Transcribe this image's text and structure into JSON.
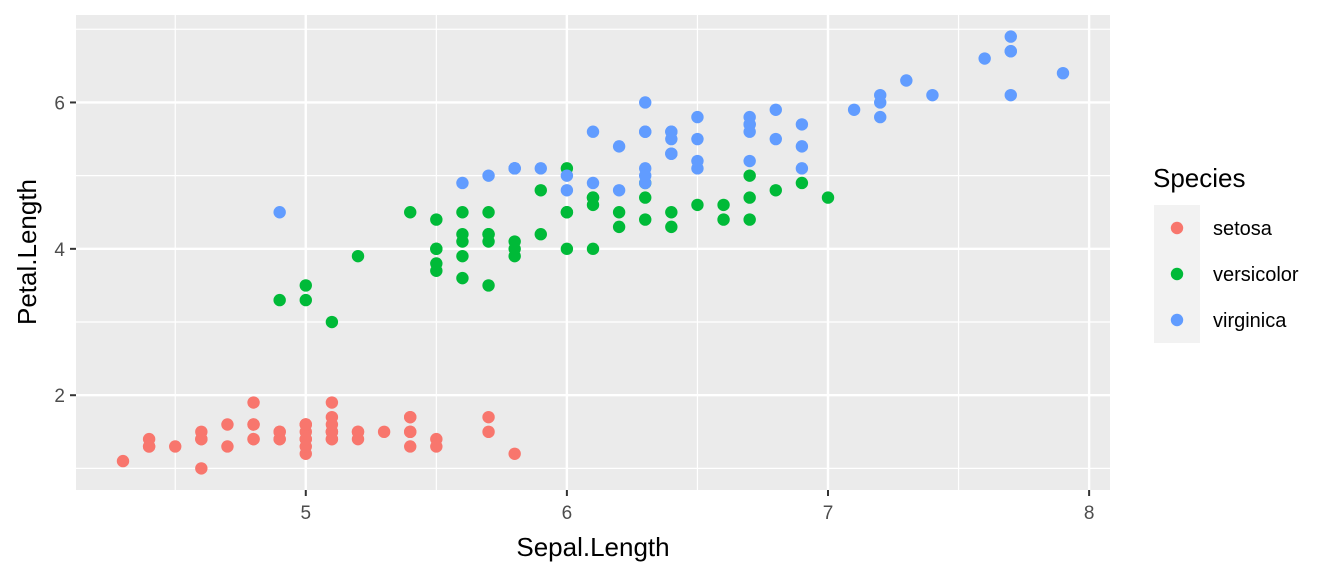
{
  "chart_data": {
    "type": "scatter",
    "title": "",
    "xlabel": "Sepal.Length",
    "ylabel": "Petal.Length",
    "xlim": [
      4.12,
      8.08
    ],
    "ylim": [
      0.705,
      7.195
    ],
    "x_ticks": [
      5,
      6,
      7,
      8
    ],
    "y_ticks": [
      2,
      4,
      6
    ],
    "x_tick_labels": [
      "5",
      "6",
      "7",
      "8"
    ],
    "y_tick_labels": [
      "2",
      "4",
      "6"
    ],
    "grid": true,
    "legend": {
      "title": "Species",
      "position": "right"
    },
    "series": [
      {
        "name": "setosa",
        "color": "#F8766D",
        "points": [
          [
            5.1,
            1.4
          ],
          [
            4.9,
            1.4
          ],
          [
            4.7,
            1.3
          ],
          [
            4.6,
            1.5
          ],
          [
            5.0,
            1.4
          ],
          [
            5.4,
            1.7
          ],
          [
            4.6,
            1.4
          ],
          [
            5.0,
            1.5
          ],
          [
            4.4,
            1.4
          ],
          [
            4.9,
            1.5
          ],
          [
            5.4,
            1.5
          ],
          [
            4.8,
            1.6
          ],
          [
            4.8,
            1.4
          ],
          [
            4.3,
            1.1
          ],
          [
            5.8,
            1.2
          ],
          [
            5.7,
            1.5
          ],
          [
            5.4,
            1.3
          ],
          [
            5.1,
            1.4
          ],
          [
            5.7,
            1.7
          ],
          [
            5.1,
            1.5
          ],
          [
            5.4,
            1.7
          ],
          [
            5.1,
            1.5
          ],
          [
            4.6,
            1.0
          ],
          [
            5.1,
            1.7
          ],
          [
            4.8,
            1.9
          ],
          [
            5.0,
            1.6
          ],
          [
            5.0,
            1.6
          ],
          [
            5.2,
            1.5
          ],
          [
            5.2,
            1.4
          ],
          [
            4.7,
            1.6
          ],
          [
            4.8,
            1.6
          ],
          [
            5.4,
            1.5
          ],
          [
            5.2,
            1.5
          ],
          [
            5.5,
            1.4
          ],
          [
            4.9,
            1.5
          ],
          [
            5.0,
            1.2
          ],
          [
            5.5,
            1.3
          ],
          [
            4.9,
            1.4
          ],
          [
            4.4,
            1.3
          ],
          [
            5.1,
            1.5
          ],
          [
            5.0,
            1.3
          ],
          [
            4.5,
            1.3
          ],
          [
            4.4,
            1.3
          ],
          [
            5.0,
            1.6
          ],
          [
            5.1,
            1.9
          ],
          [
            4.8,
            1.4
          ],
          [
            5.1,
            1.6
          ],
          [
            4.6,
            1.4
          ],
          [
            5.3,
            1.5
          ],
          [
            5.0,
            1.4
          ]
        ]
      },
      {
        "name": "versicolor",
        "color": "#00BA38",
        "points": [
          [
            7.0,
            4.7
          ],
          [
            6.4,
            4.5
          ],
          [
            6.9,
            4.9
          ],
          [
            5.5,
            4.0
          ],
          [
            6.5,
            4.6
          ],
          [
            5.7,
            4.5
          ],
          [
            6.3,
            4.7
          ],
          [
            4.9,
            3.3
          ],
          [
            6.6,
            4.6
          ],
          [
            5.2,
            3.9
          ],
          [
            5.0,
            3.5
          ],
          [
            5.9,
            4.2
          ],
          [
            6.0,
            4.0
          ],
          [
            6.1,
            4.7
          ],
          [
            5.6,
            3.6
          ],
          [
            6.7,
            4.4
          ],
          [
            5.6,
            4.5
          ],
          [
            5.8,
            4.1
          ],
          [
            6.2,
            4.5
          ],
          [
            5.6,
            3.9
          ],
          [
            5.9,
            4.8
          ],
          [
            6.1,
            4.0
          ],
          [
            6.3,
            4.9
          ],
          [
            6.1,
            4.7
          ],
          [
            6.4,
            4.3
          ],
          [
            6.6,
            4.4
          ],
          [
            6.8,
            4.8
          ],
          [
            6.7,
            5.0
          ],
          [
            6.0,
            4.5
          ],
          [
            5.7,
            3.5
          ],
          [
            5.5,
            3.8
          ],
          [
            5.5,
            3.7
          ],
          [
            5.8,
            3.9
          ],
          [
            6.0,
            5.1
          ],
          [
            5.4,
            4.5
          ],
          [
            6.0,
            4.5
          ],
          [
            6.7,
            4.7
          ],
          [
            6.3,
            4.4
          ],
          [
            5.6,
            4.1
          ],
          [
            5.5,
            4.0
          ],
          [
            5.5,
            4.4
          ],
          [
            6.1,
            4.6
          ],
          [
            5.8,
            4.0
          ],
          [
            5.0,
            3.3
          ],
          [
            5.6,
            4.2
          ],
          [
            5.7,
            4.2
          ],
          [
            5.7,
            4.2
          ],
          [
            6.2,
            4.3
          ],
          [
            5.1,
            3.0
          ],
          [
            5.7,
            4.1
          ]
        ]
      },
      {
        "name": "virginica",
        "color": "#619CFF",
        "points": [
          [
            6.3,
            6.0
          ],
          [
            5.8,
            5.1
          ],
          [
            7.1,
            5.9
          ],
          [
            6.3,
            5.6
          ],
          [
            6.5,
            5.8
          ],
          [
            7.6,
            6.6
          ],
          [
            4.9,
            4.5
          ],
          [
            7.3,
            6.3
          ],
          [
            6.7,
            5.8
          ],
          [
            7.2,
            6.1
          ],
          [
            6.5,
            5.1
          ],
          [
            6.4,
            5.3
          ],
          [
            6.8,
            5.5
          ],
          [
            5.7,
            5.0
          ],
          [
            5.8,
            5.1
          ],
          [
            6.4,
            5.3
          ],
          [
            6.5,
            5.5
          ],
          [
            7.7,
            6.7
          ],
          [
            7.7,
            6.9
          ],
          [
            6.0,
            5.0
          ],
          [
            6.9,
            5.7
          ],
          [
            5.6,
            4.9
          ],
          [
            7.7,
            6.7
          ],
          [
            6.3,
            4.9
          ],
          [
            6.7,
            5.7
          ],
          [
            7.2,
            6.0
          ],
          [
            6.2,
            4.8
          ],
          [
            6.1,
            4.9
          ],
          [
            6.4,
            5.6
          ],
          [
            7.2,
            5.8
          ],
          [
            7.4,
            6.1
          ],
          [
            7.9,
            6.4
          ],
          [
            6.4,
            5.6
          ],
          [
            6.3,
            5.1
          ],
          [
            6.1,
            5.6
          ],
          [
            7.7,
            6.1
          ],
          [
            6.3,
            5.6
          ],
          [
            6.4,
            5.5
          ],
          [
            6.0,
            4.8
          ],
          [
            6.9,
            5.4
          ],
          [
            6.7,
            5.6
          ],
          [
            6.9,
            5.1
          ],
          [
            5.8,
            5.1
          ],
          [
            6.8,
            5.9
          ],
          [
            6.7,
            5.7
          ],
          [
            6.7,
            5.2
          ],
          [
            6.3,
            5.0
          ],
          [
            6.5,
            5.2
          ],
          [
            6.2,
            5.4
          ],
          [
            5.9,
            5.1
          ]
        ]
      }
    ]
  }
}
